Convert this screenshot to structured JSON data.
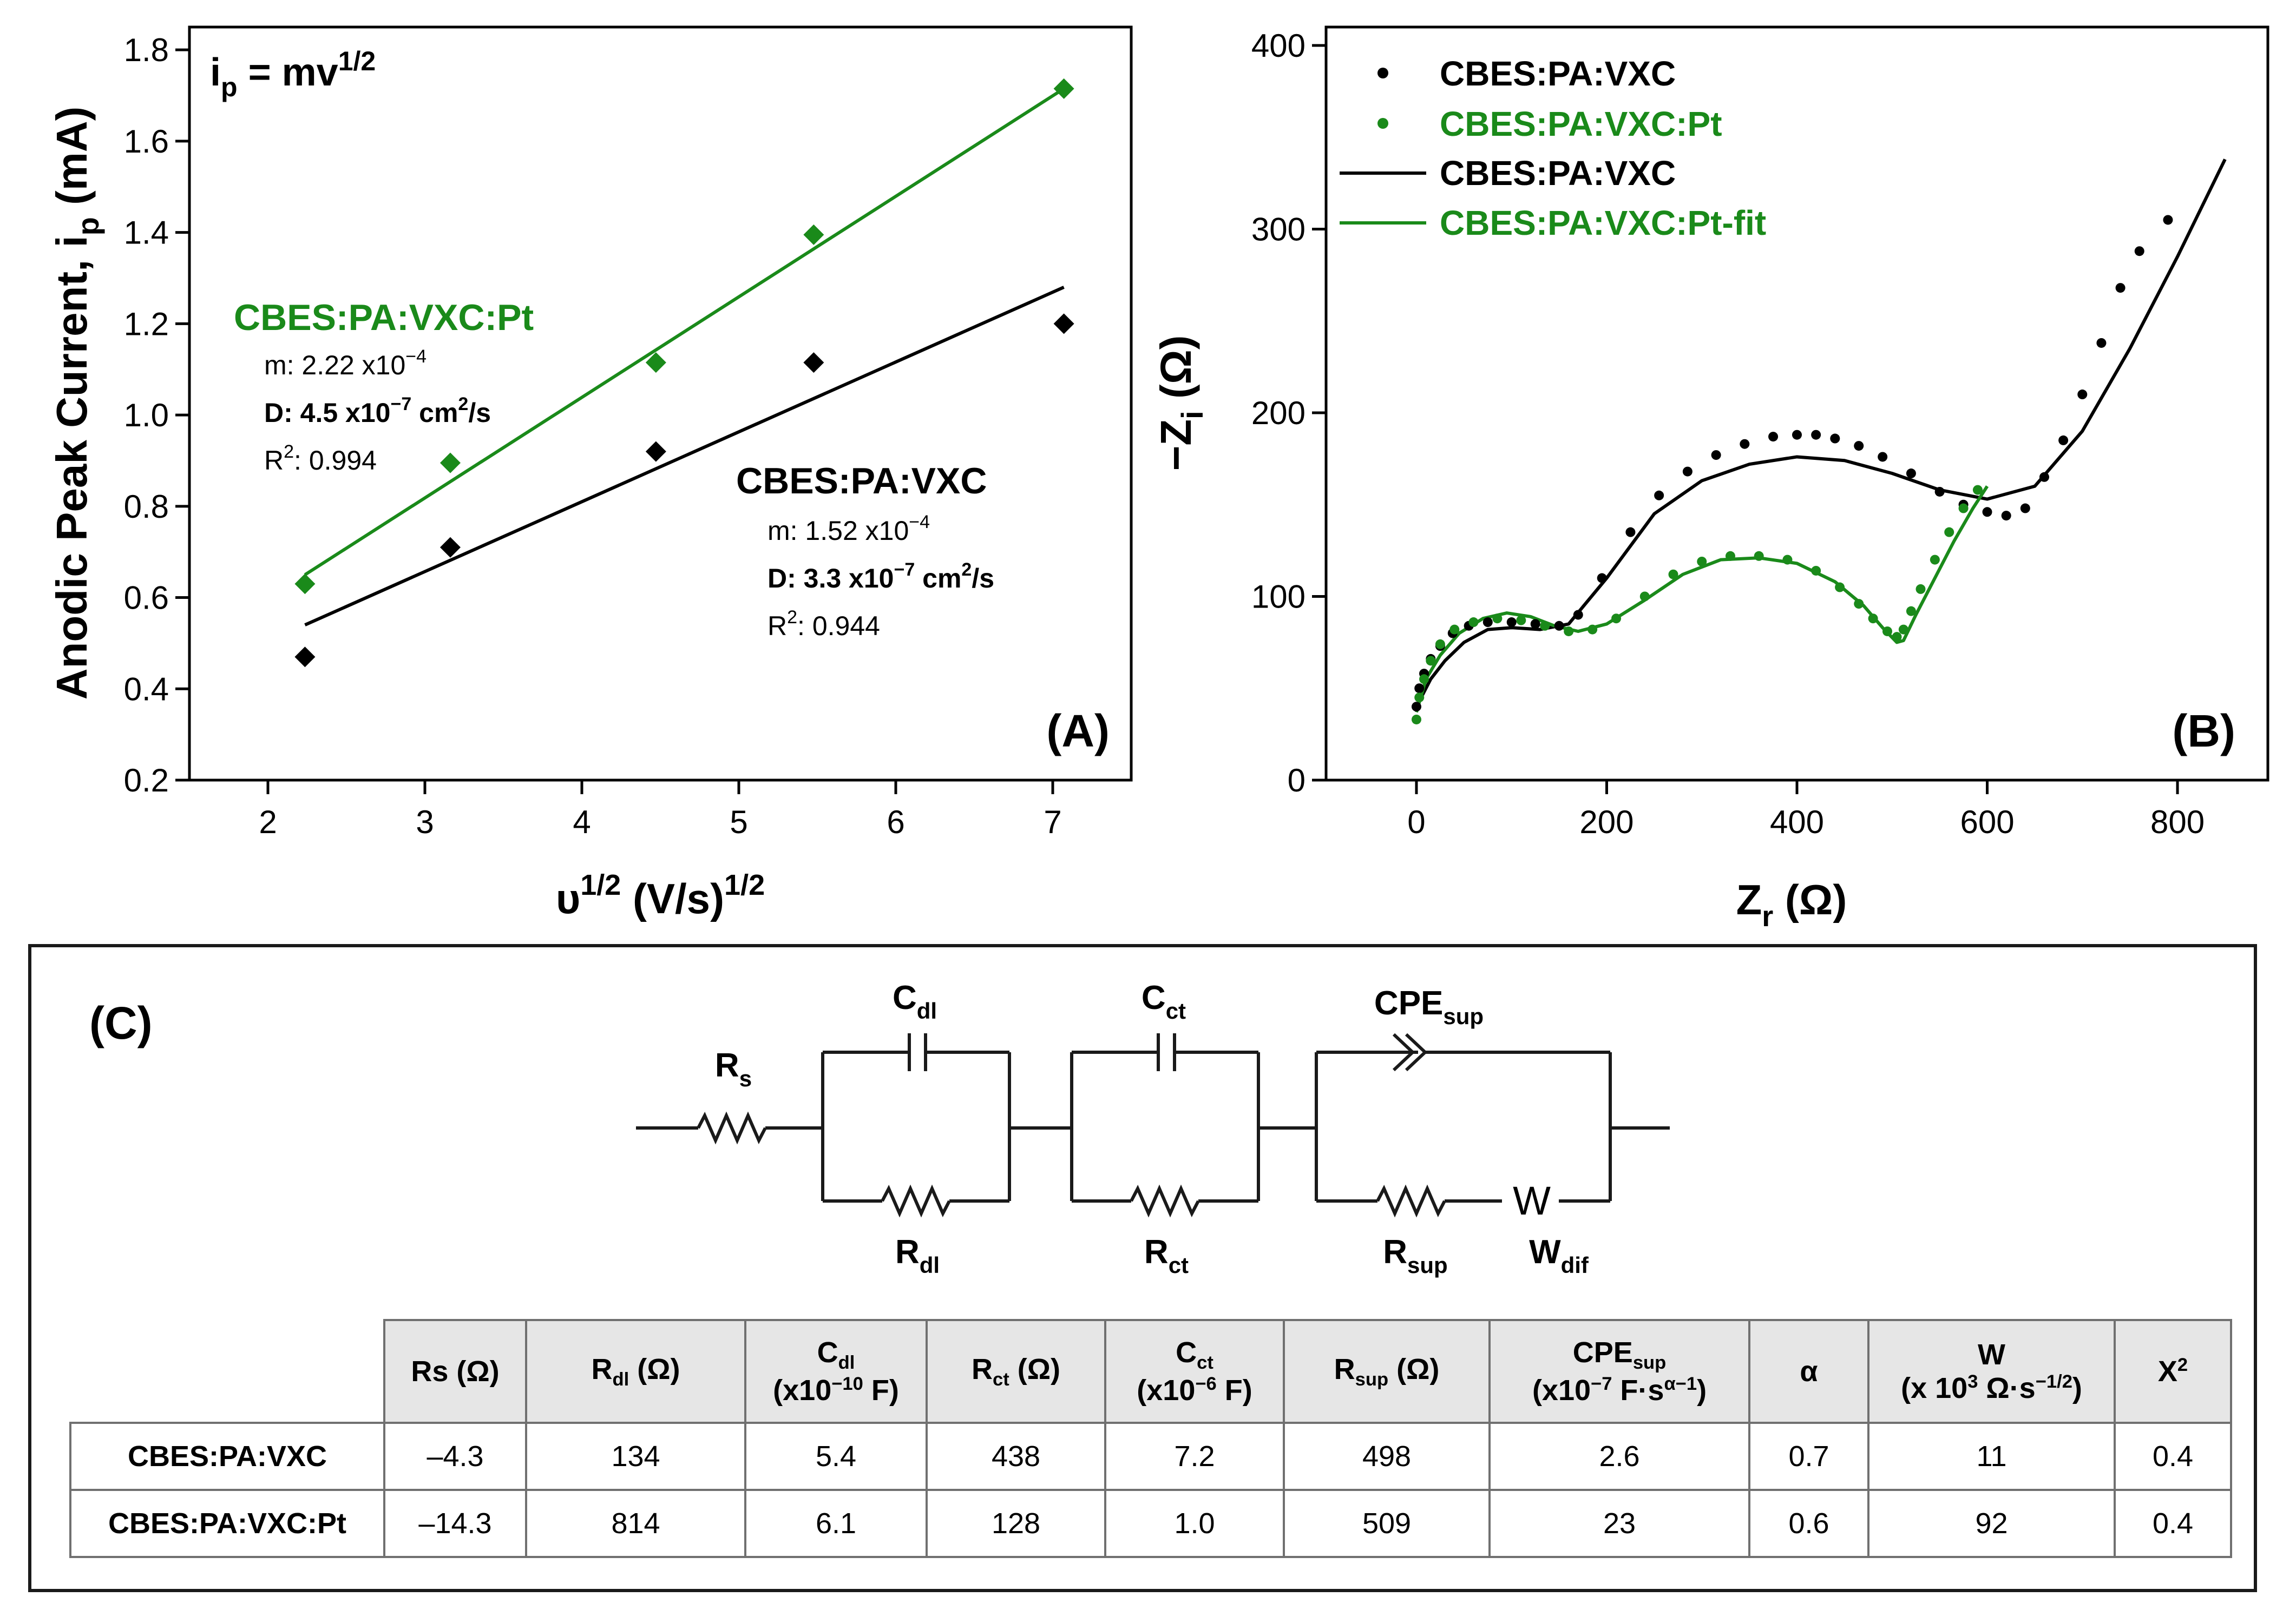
{
  "chart_data": [
    {
      "id": "A",
      "type": "scatter",
      "panel_label": "(A)",
      "equation": {
        "base": "i",
        "base_sub": "p",
        "rhs": " = mv",
        "rhs_sup": "1/2"
      },
      "xlabel": {
        "pre": "υ",
        "sup1": "1/2",
        "mid": " (V/s)",
        "sup2": "1/2"
      },
      "ylabel": {
        "pre": "Anodic Peak Current, i",
        "sub": "p",
        "post": " (mA)"
      },
      "xlim": [
        1.5,
        7.5
      ],
      "ylim": [
        0.2,
        1.85
      ],
      "xticks": [
        "2",
        "3",
        "4",
        "5",
        "6",
        "7"
      ],
      "yticks": [
        "0.2",
        "0.4",
        "0.6",
        "0.8",
        "1.0",
        "1.2",
        "1.4",
        "1.6",
        "1.8"
      ],
      "series": [
        {
          "name": "CBES:PA:VXC",
          "color": "#000000",
          "x": [
            2.236,
            3.162,
            4.472,
            5.477,
            7.071
          ],
          "y": [
            0.47,
            0.71,
            0.92,
            1.115,
            1.2
          ],
          "fit": {
            "x": [
              2.236,
              7.071
            ],
            "y": [
              0.54,
              1.28
            ]
          },
          "annotation": {
            "title": "CBES:PA:VXC",
            "m_label": "m: 1.52 x10",
            "m_exp": "−4",
            "d_label": "D: 3.3 x10",
            "d_exp": "−7",
            "d_unit": " cm",
            "d_unit_exp": "2",
            "d_unit_tail": "/s",
            "r_label": "R",
            "r_exp": "2",
            "r_value": ": 0.944"
          }
        },
        {
          "name": "CBES:PA:VXC:Pt",
          "color": "#1a8a1a",
          "x": [
            2.236,
            3.162,
            4.472,
            5.477,
            7.071
          ],
          "y": [
            0.63,
            0.895,
            1.115,
            1.395,
            1.715
          ],
          "fit": {
            "x": [
              2.236,
              7.071
            ],
            "y": [
              0.65,
              1.715
            ]
          },
          "annotation": {
            "title": "CBES:PA:VXC:Pt",
            "m_label": "m: 2.22 x10",
            "m_exp": "−4",
            "d_label": "D: 4.5 x10",
            "d_exp": "−7",
            "d_unit": " cm",
            "d_unit_exp": "2",
            "d_unit_tail": "/s",
            "r_label": "R",
            "r_exp": "2",
            "r_value": ": 0.994"
          }
        }
      ]
    },
    {
      "id": "B",
      "type": "scatter",
      "panel_label": "(B)",
      "xlabel": {
        "pre": "Z",
        "sub": "r",
        "post": " (Ω)"
      },
      "ylabel": {
        "pre": "−Z",
        "sub": "i",
        "post": " (Ω)"
      },
      "xlim": [
        -95,
        895
      ],
      "ylim": [
        0,
        410
      ],
      "xticks": [
        "0",
        "200",
        "400",
        "600",
        "800"
      ],
      "yticks": [
        "0",
        "100",
        "200",
        "300",
        "400"
      ],
      "legend_position": "top-left",
      "legend": [
        "CBES:PA:VXC",
        "CBES:PA:VXC:Pt",
        "CBES:PA:VXC",
        "CBES:PA:VXC:Pt-fit"
      ],
      "series": [
        {
          "name": "CBES:PA:VXC",
          "color": "#000000",
          "kind": "points",
          "x": [
            0,
            3,
            8,
            15,
            25,
            38,
            55,
            75,
            100,
            125,
            150,
            170,
            195,
            225,
            255,
            285,
            315,
            345,
            375,
            400,
            420,
            440,
            465,
            490,
            520,
            550,
            575,
            600,
            620,
            640,
            660,
            680,
            700,
            720,
            740,
            760,
            790
          ],
          "y": [
            40,
            50,
            58,
            66,
            73,
            80,
            84,
            86,
            86,
            85,
            84,
            90,
            110,
            135,
            155,
            168,
            177,
            183,
            187,
            188,
            188,
            186,
            182,
            176,
            167,
            157,
            150,
            146,
            144,
            148,
            165,
            185,
            210,
            238,
            268,
            288,
            305
          ]
        },
        {
          "name": "CBES:PA:VXC:Pt",
          "color": "#1a8a1a",
          "kind": "points",
          "x": [
            0,
            3,
            8,
            15,
            25,
            40,
            60,
            85,
            110,
            135,
            160,
            185,
            210,
            240,
            270,
            300,
            330,
            360,
            390,
            420,
            445,
            465,
            480,
            495,
            505,
            512,
            520,
            530,
            545,
            560,
            575,
            590
          ],
          "y": [
            33,
            45,
            55,
            65,
            74,
            82,
            86,
            88,
            87,
            84,
            81,
            82,
            88,
            100,
            112,
            119,
            122,
            122,
            120,
            114,
            105,
            96,
            88,
            81,
            78,
            82,
            92,
            104,
            120,
            135,
            148,
            158
          ]
        },
        {
          "name": "CBES:PA:VXC",
          "color": "#000000",
          "kind": "line",
          "x": [
            5,
            15,
            30,
            50,
            75,
            100,
            130,
            160,
            200,
            250,
            300,
            350,
            400,
            450,
            500,
            550,
            600,
            650,
            700,
            750,
            800,
            850
          ],
          "y": [
            45,
            55,
            65,
            75,
            82,
            83,
            82,
            85,
            110,
            145,
            163,
            172,
            176,
            174,
            167,
            158,
            153,
            160,
            190,
            235,
            285,
            338
          ]
        },
        {
          "name": "CBES:PA:VXC:Pt-fit",
          "color": "#1a8a1a",
          "kind": "line",
          "x": [
            0,
            10,
            25,
            45,
            70,
            95,
            120,
            145,
            170,
            200,
            240,
            280,
            320,
            360,
            400,
            440,
            470,
            490,
            505,
            512,
            525,
            545,
            565,
            585,
            600
          ],
          "y": [
            37,
            55,
            68,
            80,
            88,
            91,
            89,
            84,
            81,
            85,
            98,
            112,
            120,
            121,
            118,
            108,
            95,
            83,
            75,
            76,
            90,
            110,
            130,
            148,
            160
          ]
        }
      ]
    },
    {
      "id": "C",
      "type": "table",
      "panel_label": "(C)",
      "circuit": {
        "rs": {
          "base": "R",
          "sub": "s"
        },
        "cdl": {
          "base": "C",
          "sub": "dl"
        },
        "rdl": {
          "base": "R",
          "sub": "dl"
        },
        "cct": {
          "base": "C",
          "sub": "ct"
        },
        "rct": {
          "base": "R",
          "sub": "ct"
        },
        "cpe": {
          "base": "CPE",
          "sub": "sup"
        },
        "rsup": {
          "base": "R",
          "sub": "sup"
        },
        "w_symbol": "W",
        "wdif": {
          "base": "W",
          "sub": "dif"
        }
      },
      "headers": {
        "rs": "Rs (Ω)",
        "rdl": {
          "base": "R",
          "sub": "dl",
          "post": " (Ω)"
        },
        "cdl": {
          "base": "C",
          "sub": "dl",
          "line2_pre": "(x10",
          "line2_sup": "−10",
          "line2_post": " F)"
        },
        "rct": {
          "base": "R",
          "sub": "ct",
          "post": " (Ω)"
        },
        "cct": {
          "base": "C",
          "sub": "ct",
          "line2_pre": "(x10",
          "line2_sup": "−6",
          "line2_post": " F)"
        },
        "rsup": {
          "base": "R",
          "sub": "sup",
          "post": " (Ω)"
        },
        "cpe": {
          "base": "CPE",
          "sub": "sup",
          "line2_pre": "(x10",
          "line2_sup": "−7",
          "line2_mid": " F·s",
          "line2_sup2": "α−1",
          "line2_post": ")"
        },
        "alpha": "α",
        "w": {
          "line1": "W",
          "line2_pre": "(x 10",
          "line2_sup": "3",
          "line2_mid": " Ω·s",
          "line2_sup2": "−1/2",
          "line2_post": ")"
        },
        "x2": {
          "base": "X",
          "sup": "2"
        }
      },
      "rows": [
        {
          "name": "CBES:PA:VXC",
          "values": [
            "–4.3",
            "134",
            "5.4",
            "438",
            "7.2",
            "498",
            "2.6",
            "0.7",
            "11",
            "0.4"
          ]
        },
        {
          "name": "CBES:PA:VXC:Pt",
          "values": [
            "–14.3",
            "814",
            "6.1",
            "128",
            "1.0",
            "509",
            "23",
            "0.6",
            "92",
            "0.4"
          ]
        }
      ]
    }
  ]
}
